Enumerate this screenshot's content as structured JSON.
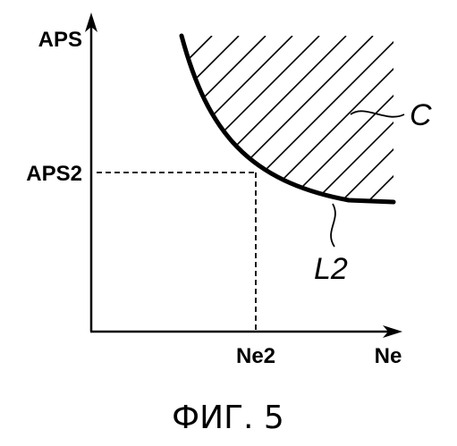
{
  "axes": {
    "y_label": "APS",
    "x_label": "Ne"
  },
  "markers": {
    "y_marker": "APS2",
    "x_marker": "Ne2"
  },
  "labels": {
    "region": "C",
    "curve": "L2"
  },
  "caption": "ФИГ. 5"
}
